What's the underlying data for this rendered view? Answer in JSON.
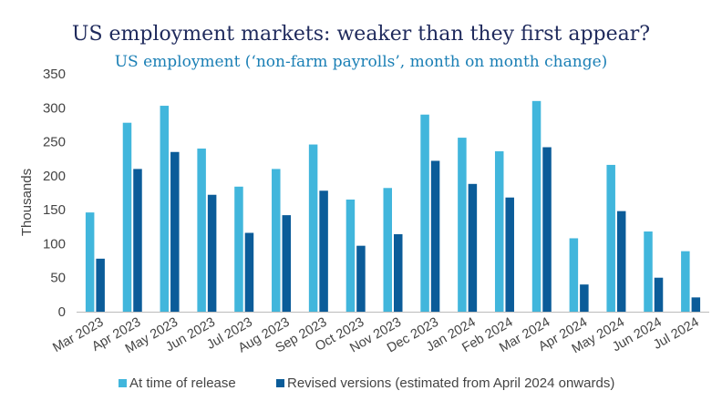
{
  "chart_data": {
    "type": "bar",
    "title": "US employment markets: weaker than they first appear?",
    "subtitle": "US employment (‘non-farm payrolls’, month on month change)",
    "ylabel": "Thousands",
    "xlabel": "",
    "ylim": [
      0,
      350
    ],
    "yticks": [
      0,
      50,
      100,
      150,
      200,
      250,
      300,
      350
    ],
    "grid": false,
    "legend_position": "bottom",
    "categories": [
      "Mar 2023",
      "Apr 2023",
      "May 2023",
      "Jun 2023",
      "Jul 2023",
      "Aug 2023",
      "Sep 2023",
      "Oct 2023",
      "Nov 2023",
      "Dec 2023",
      "Jan 2024",
      "Feb 2024",
      "Mar 2024",
      "Apr 2024",
      "May 2024",
      "Jun 2024",
      "Jul 2024"
    ],
    "series": [
      {
        "name": "At time of release",
        "color": "#41b6dc",
        "values": [
          146,
          278,
          303,
          240,
          184,
          210,
          246,
          165,
          182,
          290,
          256,
          236,
          310,
          108,
          216,
          118,
          89
        ]
      },
      {
        "name": "Revised versions (estimated from April 2024 onwards)",
        "color": "#0b5c99",
        "values": [
          78,
          210,
          235,
          172,
          116,
          142,
          178,
          97,
          114,
          222,
          188,
          168,
          242,
          40,
          148,
          50,
          21
        ]
      }
    ]
  }
}
